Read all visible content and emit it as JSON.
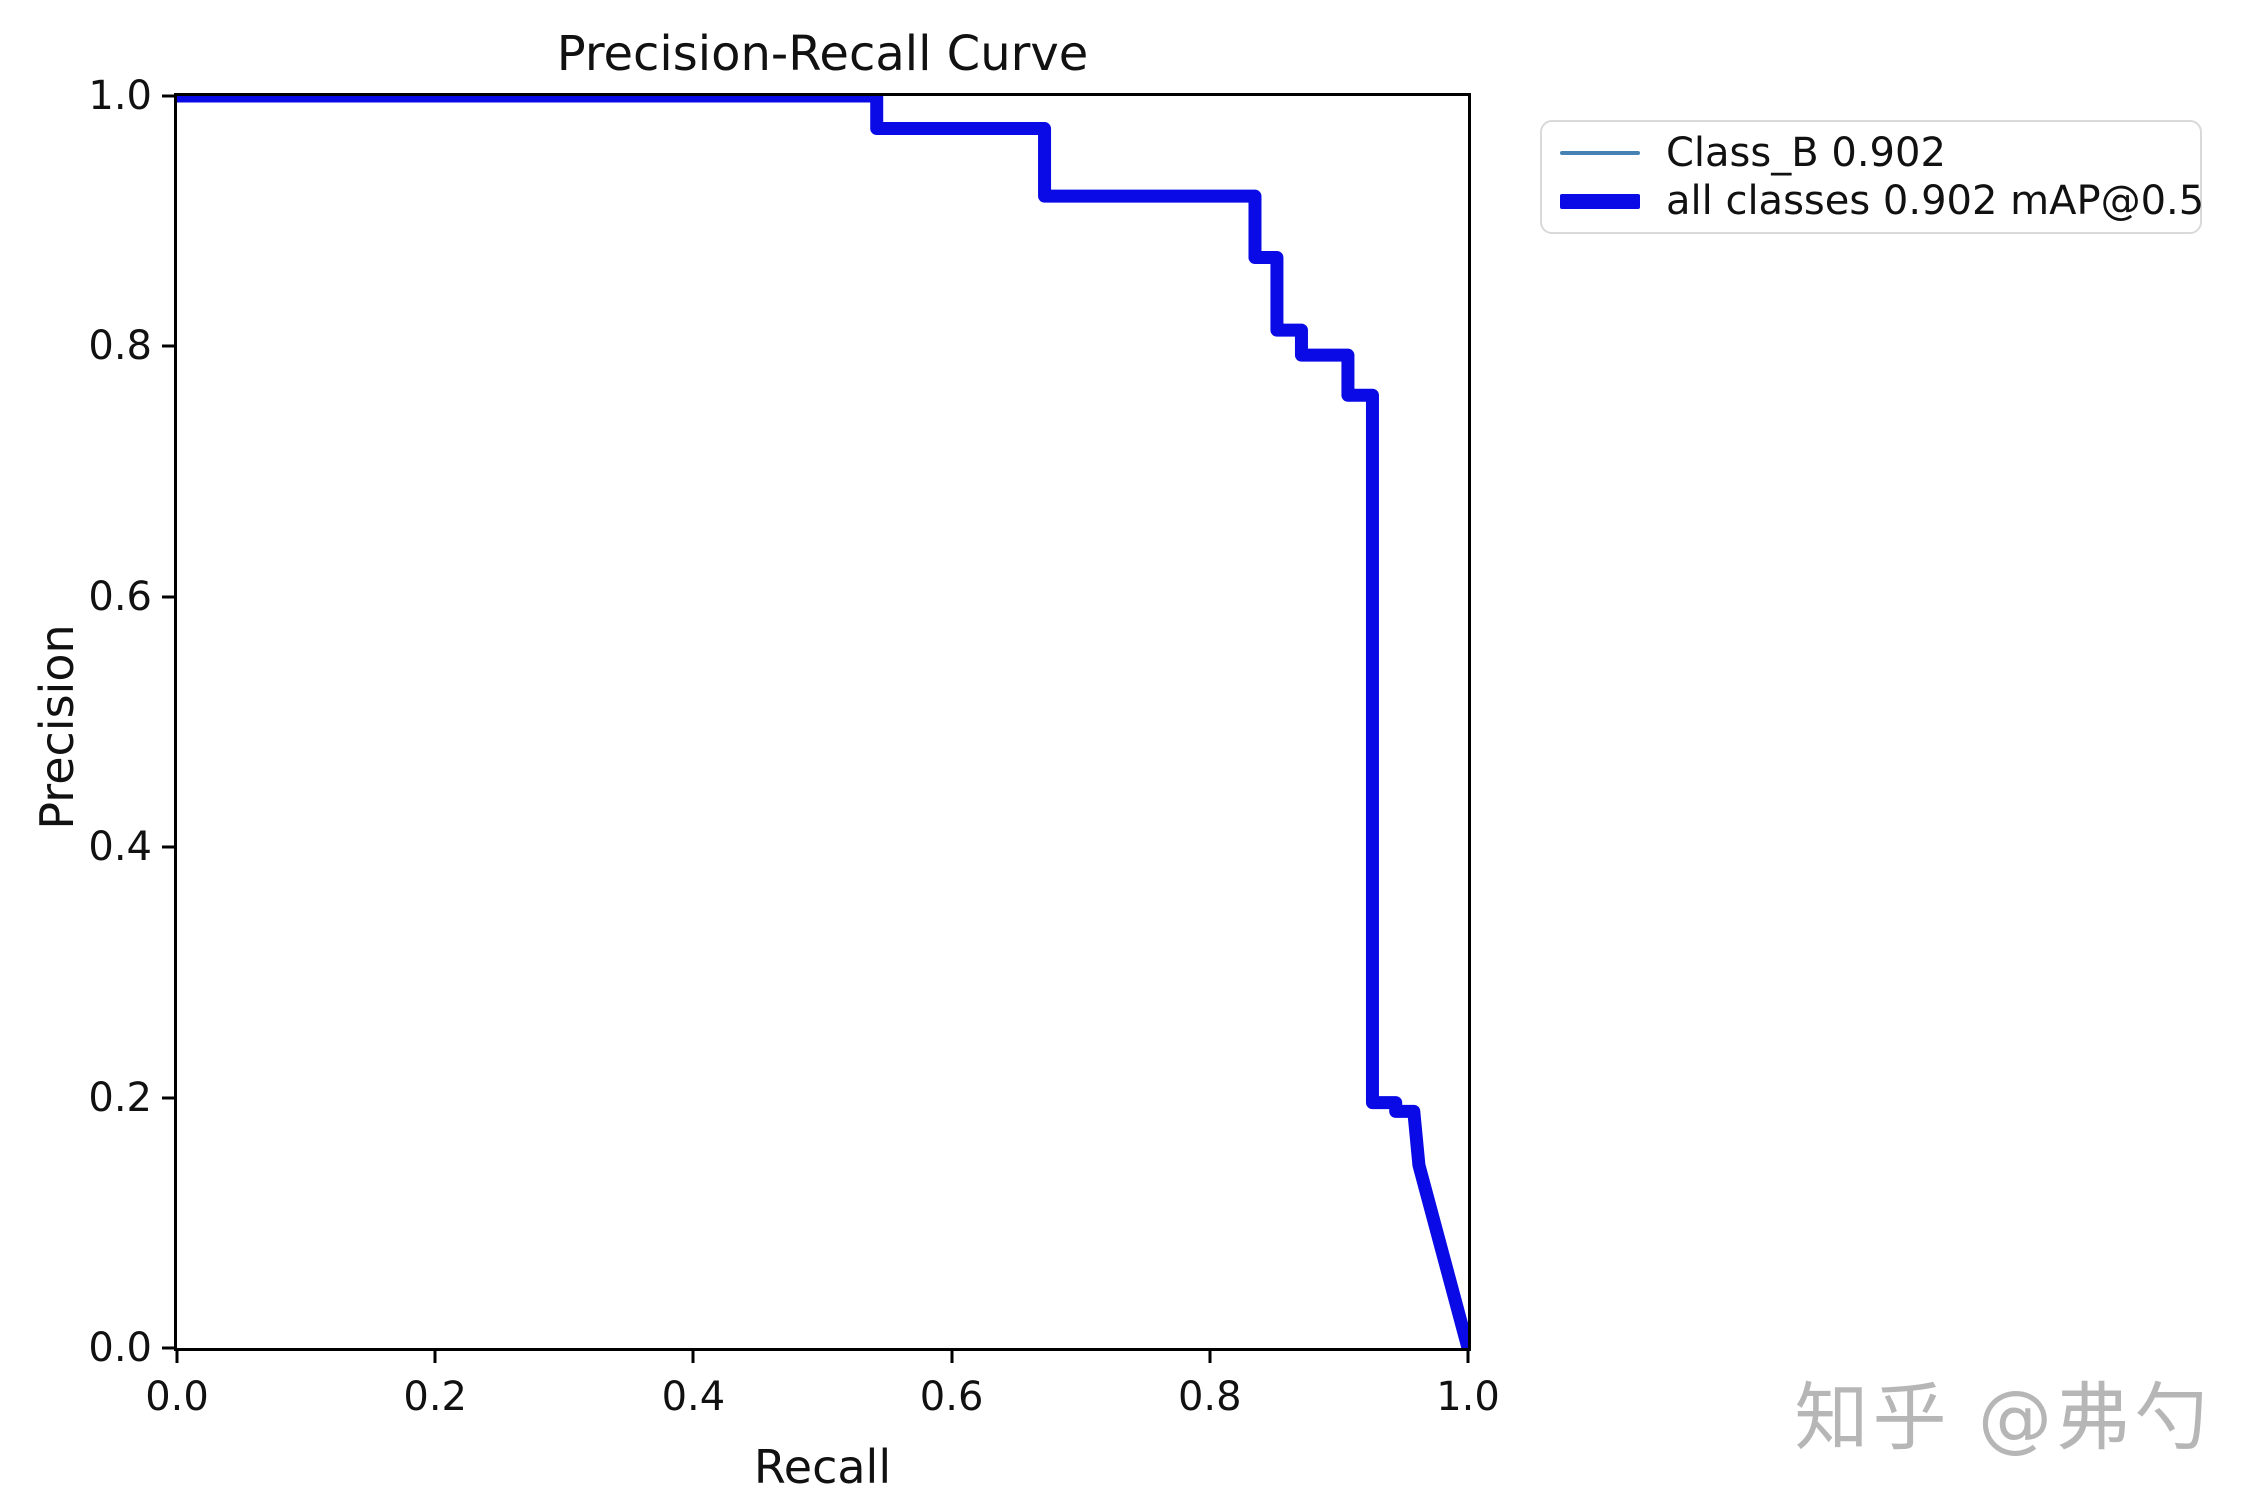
{
  "title": "Precision-Recall Curve",
  "watermark": "知乎 @弗勺",
  "colors": {
    "all_classes_line": "#0a0ae6",
    "class_b_line": "#4682b4",
    "axis": "#000000",
    "text": "#111111",
    "legend_border": "#d9d9d9",
    "watermark": "#b0b0b0",
    "background": "#ffffff"
  },
  "legend": {
    "items": [
      {
        "label": "Class_B 0.902",
        "swatch": "thin"
      },
      {
        "label": "all classes 0.902 mAP@0.5",
        "swatch": "thick"
      }
    ]
  },
  "chart_data": {
    "type": "line",
    "subtype": "precision-recall step curve",
    "title": "Precision-Recall Curve",
    "xlabel": "Recall",
    "ylabel": "Precision",
    "xlim": [
      0.0,
      1.0
    ],
    "ylim": [
      0.0,
      1.0
    ],
    "xticks": [
      "0.0",
      "0.2",
      "0.4",
      "0.6",
      "0.8",
      "1.0"
    ],
    "yticks": [
      "0.0",
      "0.2",
      "0.4",
      "0.6",
      "0.8",
      "1.0"
    ],
    "grid": false,
    "legend_position": "outside upper right",
    "series": [
      {
        "name": "Class_B 0.902",
        "color": "#4682b4",
        "linewidth": "thin",
        "points": [
          [
            0.0,
            1.0
          ],
          [
            0.542,
            1.0
          ],
          [
            0.542,
            0.974
          ],
          [
            0.672,
            0.974
          ],
          [
            0.672,
            0.92
          ],
          [
            0.835,
            0.92
          ],
          [
            0.835,
            0.871
          ],
          [
            0.852,
            0.871
          ],
          [
            0.852,
            0.813
          ],
          [
            0.871,
            0.813
          ],
          [
            0.871,
            0.793
          ],
          [
            0.907,
            0.793
          ],
          [
            0.907,
            0.761
          ],
          [
            0.926,
            0.761
          ],
          [
            0.926,
            0.196
          ],
          [
            0.944,
            0.196
          ],
          [
            0.944,
            0.189
          ],
          [
            0.958,
            0.189
          ],
          [
            0.962,
            0.146
          ],
          [
            1.0,
            0.0
          ]
        ]
      },
      {
        "name": "all classes 0.902 mAP@0.5",
        "color": "#0a0ae6",
        "linewidth": "thick",
        "points": [
          [
            0.0,
            1.0
          ],
          [
            0.542,
            1.0
          ],
          [
            0.542,
            0.974
          ],
          [
            0.672,
            0.974
          ],
          [
            0.672,
            0.92
          ],
          [
            0.835,
            0.92
          ],
          [
            0.835,
            0.871
          ],
          [
            0.852,
            0.871
          ],
          [
            0.852,
            0.813
          ],
          [
            0.871,
            0.813
          ],
          [
            0.871,
            0.793
          ],
          [
            0.907,
            0.793
          ],
          [
            0.907,
            0.761
          ],
          [
            0.926,
            0.761
          ],
          [
            0.926,
            0.196
          ],
          [
            0.944,
            0.196
          ],
          [
            0.944,
            0.189
          ],
          [
            0.958,
            0.189
          ],
          [
            0.962,
            0.146
          ],
          [
            1.0,
            0.0
          ]
        ]
      }
    ]
  }
}
